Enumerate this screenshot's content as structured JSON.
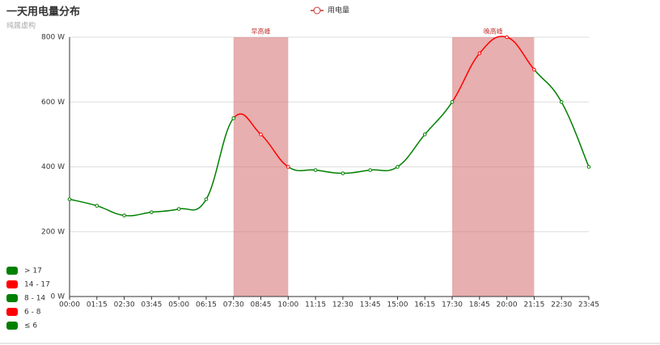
{
  "chart_data": {
    "type": "line",
    "title": "一天用电量分布",
    "subtitle": "纯属虚构",
    "categories": [
      "00:00",
      "01:15",
      "02:30",
      "03:45",
      "05:00",
      "06:15",
      "07:30",
      "08:45",
      "10:00",
      "11:15",
      "12:30",
      "13:45",
      "15:00",
      "16:15",
      "17:30",
      "18:45",
      "20:00",
      "21:15",
      "22:30",
      "23:45"
    ],
    "series": [
      {
        "name": "用电量",
        "color": "#c23531",
        "values": [
          300,
          280,
          250,
          260,
          270,
          300,
          550,
          500,
          400,
          390,
          380,
          390,
          400,
          500,
          600,
          750,
          800,
          700,
          600,
          400
        ]
      }
    ],
    "ylim": [
      0,
      800
    ],
    "yticks": [
      {
        "value": 0,
        "label": "0 W"
      },
      {
        "value": 200,
        "label": "200 W"
      },
      {
        "value": 400,
        "label": "400 W"
      },
      {
        "value": 600,
        "label": "600 W"
      },
      {
        "value": 800,
        "label": "800 W"
      }
    ],
    "grid": true,
    "mark_areas": [
      {
        "name": "早高峰",
        "from": "07:30",
        "to": "10:00"
      },
      {
        "name": "晚高峰",
        "from": "17:30",
        "to": "21:15"
      }
    ],
    "mark_area_color": "rgba(212,110,110,0.55)",
    "visual_pieces": [
      {
        "label": "> 17",
        "color": "green",
        "gt": 17
      },
      {
        "label": "14 - 17",
        "color": "red",
        "gt": 14,
        "lte": 17
      },
      {
        "label": "8 - 14",
        "color": "green",
        "gt": 8,
        "lte": 14
      },
      {
        "label": "6 - 8",
        "color": "red",
        "gt": 6,
        "lte": 8
      },
      {
        "label": "≤ 6",
        "color": "green",
        "lte": 6
      }
    ]
  }
}
